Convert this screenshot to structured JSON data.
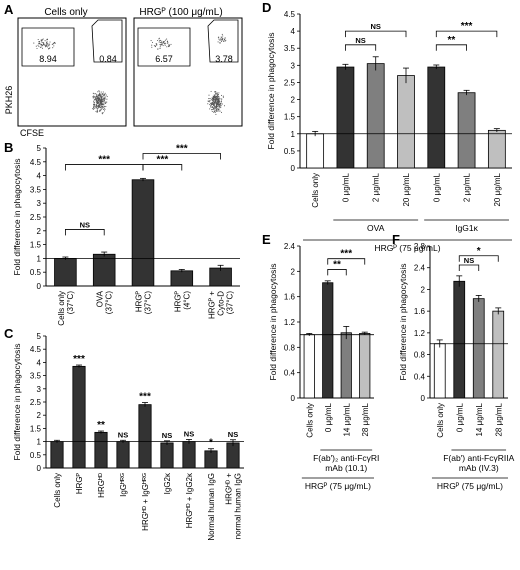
{
  "panel_letters": {
    "A": "A",
    "B": "B",
    "C": "C",
    "D": "D",
    "E": "E",
    "F": "F"
  },
  "flow": {
    "ylabel": "PKH26",
    "xlabel": "CFSE",
    "plots": [
      {
        "title": "Cells only",
        "gate_left": "8.94",
        "gate_right": "0.84"
      },
      {
        "title": "HRGᴾ (100 μg/mL)",
        "gate_left": "6.57",
        "gate_right": "3.78"
      }
    ]
  },
  "chart_data": [
    {
      "panel": "B",
      "type": "bar",
      "ylabel": "Fold difference in phagocytosis",
      "ylim": [
        0,
        5
      ],
      "yticks": [
        "0",
        "0.5",
        "1",
        "1.5",
        "2",
        "2.5",
        "3",
        "3.5",
        "4",
        "4.5",
        "5"
      ],
      "ytick_values": [
        0,
        0.5,
        1,
        1.5,
        2,
        2.5,
        3,
        3.5,
        4,
        4.5,
        5
      ],
      "reference_line": 1,
      "categories": [
        "Cells only (37°C)",
        "OVA (37°C)",
        "HRGᴾ (37°C)",
        "HRGᴾ (4°C)",
        "HRGᴾ + Cyto-D (37°C)"
      ],
      "labels": [
        [
          "Cells only",
          "(37°C)"
        ],
        [
          "OVA",
          "(37°C)"
        ],
        [
          "HRGᴾ",
          "(37°C)"
        ],
        [
          "HRGᴾ",
          "(4°C)"
        ],
        [
          "HRGᴾ +",
          "Cyto-D",
          "(37°C)"
        ]
      ],
      "values": [
        1.0,
        1.15,
        3.85,
        0.55,
        0.65
      ],
      "errors": [
        0.05,
        0.08,
        0.05,
        0.05,
        0.1
      ],
      "colors": [
        "#333333",
        "#333333",
        "#333333",
        "#333333",
        "#333333"
      ],
      "brackets": [
        {
          "from": 0,
          "to": 1,
          "label": "NS",
          "level": 2.05
        },
        {
          "from": 0,
          "to": 2,
          "label": "***",
          "level": 4.4
        },
        {
          "from": 2,
          "to": 3,
          "label": "***",
          "level": 4.4
        },
        {
          "from": 2,
          "to": 4,
          "label": "***",
          "level": 4.8
        }
      ]
    },
    {
      "panel": "C",
      "type": "bar",
      "ylabel": "Fold difference in phagocytosis",
      "ylim": [
        0,
        5
      ],
      "yticks": [
        "0",
        "0.5",
        "1",
        "1.5",
        "2",
        "2.5",
        "3",
        "3.5",
        "4",
        "4.5",
        "5"
      ],
      "ytick_values": [
        0,
        0.5,
        1,
        1.5,
        2,
        2.5,
        3,
        3.5,
        4,
        4.5,
        5
      ],
      "reference_line": 1,
      "categories": [
        "Cells only",
        "HRGᴾ",
        "HRGᴴᴰ",
        "IgGᴴᴿᴳ",
        "HRGᴴᴰ + IgGᴴᴿᴳ",
        "IgG2κ",
        "HRGᴴᴰ + IgG2κ",
        "Normal human IgG",
        "HRGᴴᴰ + normal human IgG"
      ],
      "labels": [
        [
          "Cells only"
        ],
        [
          "HRGᴾ"
        ],
        [
          "HRGᴴᴰ"
        ],
        [
          "IgGᴴᴿᴳ"
        ],
        [
          "HRGᴴᴰ + IgGᴴᴿᴳ"
        ],
        [
          "IgG2κ"
        ],
        [
          "HRGᴴᴰ + IgG2κ"
        ],
        [
          "Normal human IgG"
        ],
        [
          "HRGᴴᴰ +",
          "normal human IgG"
        ]
      ],
      "values": [
        1.0,
        3.85,
        1.35,
        1.0,
        2.4,
        0.95,
        1.0,
        0.65,
        0.95
      ],
      "errors": [
        0.05,
        0.05,
        0.05,
        0.05,
        0.08,
        0.08,
        0.08,
        0.08,
        0.12
      ],
      "colors": [
        "#333333",
        "#333333",
        "#333333",
        "#333333",
        "#333333",
        "#333333",
        "#333333",
        "#333333",
        "#333333"
      ],
      "sig": [
        "",
        "***",
        "**",
        "NS",
        "***",
        "NS",
        "NS",
        "*",
        "NS"
      ]
    },
    {
      "panel": "D",
      "type": "bar",
      "ylabel": "Fold difference in phagocytosis",
      "ylim": [
        0,
        4.5
      ],
      "yticks": [
        "0",
        "0.5",
        "1",
        "1.5",
        "2",
        "2.5",
        "3",
        "3.5",
        "4",
        "4.5"
      ],
      "ytick_values": [
        0,
        0.5,
        1,
        1.5,
        2,
        2.5,
        3,
        3.5,
        4,
        4.5
      ],
      "reference_line": 1,
      "categories": [
        "Cells only",
        "0 μg/mL",
        "2 μg/mL",
        "20 μg/mL",
        "0 μg/mL",
        "2 μg/mL",
        "20 μg/mL"
      ],
      "labels": [
        [
          "Cells only"
        ],
        [
          "0 μg/mL"
        ],
        [
          "2 μg/mL"
        ],
        [
          "20 μg/mL"
        ],
        [
          "0 μg/mL"
        ],
        [
          "2 μg/mL"
        ],
        [
          "20 μg/mL"
        ]
      ],
      "values": [
        1.0,
        2.95,
        3.05,
        2.7,
        2.95,
        2.2,
        1.1
      ],
      "errors": [
        0.07,
        0.08,
        0.2,
        0.22,
        0.06,
        0.07,
        0.05
      ],
      "colors": [
        "#ffffff",
        "#333333",
        "#7f7f7f",
        "#bfbfbf",
        "#333333",
        "#7f7f7f",
        "#bfbfbf"
      ],
      "brackets": [
        {
          "from": 1,
          "to": 2,
          "label": "NS",
          "level": 3.6
        },
        {
          "from": 1,
          "to": 3,
          "label": "NS",
          "level": 4.0
        },
        {
          "from": 4,
          "to": 5,
          "label": "**",
          "level": 3.6
        },
        {
          "from": 4,
          "to": 6,
          "label": "***",
          "level": 4.0
        }
      ],
      "groups": [
        {
          "label": "OVA",
          "from": 1,
          "to": 3
        },
        {
          "label": "IgG1κ",
          "from": 4,
          "to": 6
        }
      ],
      "footer": "HRGᴾ (75 μg/mL)"
    },
    {
      "panel": "E",
      "type": "bar",
      "ylabel": "Fold difference in phagocytosis",
      "ylim": [
        0,
        2.4
      ],
      "yticks": [
        "0",
        "0.4",
        "0.8",
        "1.2",
        "1.6",
        "2",
        "2.4"
      ],
      "ytick_values": [
        0,
        0.4,
        0.8,
        1.2,
        1.6,
        2,
        2.4
      ],
      "reference_line": 1,
      "categories": [
        "Cells only",
        "0 μg/mL",
        "14 μg/mL",
        "28 μg/mL"
      ],
      "labels": [
        [
          "Cells only"
        ],
        [
          "0 μg/mL"
        ],
        [
          "14 μg/mL"
        ],
        [
          "28 μg/mL"
        ]
      ],
      "values": [
        1.0,
        1.82,
        1.03,
        1.02
      ],
      "errors": [
        0.02,
        0.03,
        0.1,
        0.02
      ],
      "colors": [
        "#ffffff",
        "#333333",
        "#7f7f7f",
        "#bfbfbf"
      ],
      "brackets": [
        {
          "from": 1,
          "to": 2,
          "label": "**",
          "level": 2.03
        },
        {
          "from": 1,
          "to": 3,
          "label": "***",
          "level": 2.2
        }
      ],
      "groups": [
        {
          "label": "F(ab′)₂ anti-FcγRI",
          "label2": "mAb (10.1)",
          "from": 1,
          "to": 3
        }
      ],
      "footer": "HRGᴾ (75 μg/mL)"
    },
    {
      "panel": "F",
      "type": "bar",
      "ylabel": "Fold difference in phagocytosis",
      "ylim": [
        0,
        2.8
      ],
      "yticks": [
        "0",
        "0.4",
        "0.8",
        "1.2",
        "1.6",
        "2",
        "2.4",
        "2.8"
      ],
      "ytick_values": [
        0,
        0.4,
        0.8,
        1.2,
        1.6,
        2,
        2.4,
        2.8
      ],
      "reference_line": 1,
      "categories": [
        "Cells only",
        "0 μg/mL",
        "14 μg/mL",
        "28 μg/mL"
      ],
      "labels": [
        [
          "Cells only"
        ],
        [
          "0 μg/mL"
        ],
        [
          "14 μg/mL"
        ],
        [
          "28 μg/mL"
        ]
      ],
      "values": [
        1.0,
        2.15,
        1.83,
        1.6
      ],
      "errors": [
        0.07,
        0.1,
        0.06,
        0.06
      ],
      "colors": [
        "#ffffff",
        "#333333",
        "#7f7f7f",
        "#bfbfbf"
      ],
      "brackets": [
        {
          "from": 1,
          "to": 2,
          "label": "NS",
          "level": 2.45
        },
        {
          "from": 1,
          "to": 3,
          "label": "*",
          "level": 2.62
        }
      ],
      "groups": [
        {
          "label": "F(ab′) anti-FcγRIIA",
          "label2": "mAb (IV.3)",
          "from": 1,
          "to": 3
        }
      ],
      "footer": "HRGᴾ (75 μg/mL)"
    }
  ]
}
